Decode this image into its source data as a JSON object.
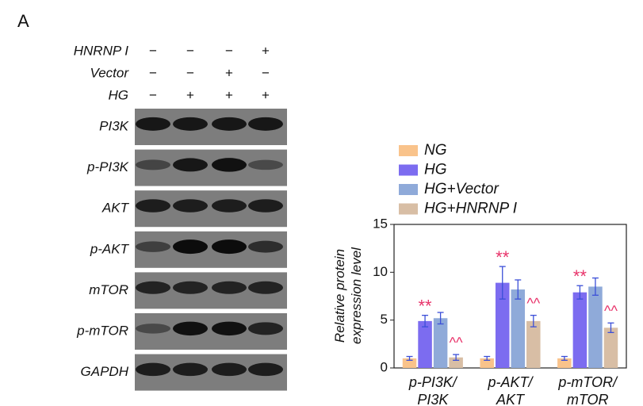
{
  "panel_label": "A",
  "blot": {
    "treatments": [
      {
        "label": "HNRNP I",
        "signs": [
          "−",
          "−",
          "−",
          "+"
        ]
      },
      {
        "label": "Vector",
        "signs": [
          "−",
          "−",
          "+",
          "−"
        ]
      },
      {
        "label": "HG",
        "signs": [
          "−",
          "+",
          "+",
          "+"
        ]
      }
    ],
    "bands": [
      "PI3K",
      "p-PI3K",
      "AKT",
      "p-AKT",
      "mTOR",
      "p-mTOR",
      "GAPDH"
    ]
  },
  "chart_data": {
    "type": "bar",
    "ylabel": [
      "Relative protein",
      "expression level"
    ],
    "categories": [
      [
        "p-PI3K/",
        "PI3K"
      ],
      [
        "p-AKT/",
        "AKT"
      ],
      [
        "p-mTOR/",
        "mTOR"
      ]
    ],
    "series": [
      {
        "name": "NG",
        "color": "#f9c38b",
        "values": [
          1,
          1,
          1
        ],
        "errors": [
          0.2,
          0.2,
          0.2
        ]
      },
      {
        "name": "HG",
        "color": "#7c6cf0",
        "values": [
          4.9,
          8.9,
          7.9
        ],
        "errors": [
          0.6,
          1.7,
          0.7
        ],
        "significance": [
          "**",
          "**",
          "**"
        ]
      },
      {
        "name": "HG+Vector",
        "color": "#8faad9",
        "values": [
          5.2,
          8.2,
          8.5
        ],
        "errors": [
          0.6,
          1.0,
          0.9
        ]
      },
      {
        "name": "HG+HNRNP I",
        "color": "#d8bea5",
        "values": [
          1.1,
          4.9,
          4.2
        ],
        "errors": [
          0.3,
          0.6,
          0.5
        ],
        "significance": [
          "^^",
          "^^",
          "^^"
        ]
      }
    ],
    "ylim": [
      0,
      15
    ],
    "yticks": [
      0,
      5,
      10,
      15
    ]
  }
}
